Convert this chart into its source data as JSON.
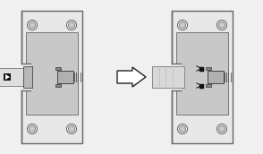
{
  "bg_color": "#f0f0f0",
  "plate_fill": "#e8e8e8",
  "plate_edge": "#666666",
  "recess_fill": "#c8c8c8",
  "recess_edge": "#777777",
  "cable_fill": "#dedede",
  "cable_edge": "#888888",
  "connector_fill": "#c0c0c0",
  "connector_edge": "#444444",
  "pin_color": "#555555",
  "screw_outer_fill": "#ffffff",
  "screw_inner_fill": "#cccccc",
  "screw_edge": "#555555",
  "black": "#111111",
  "white": "#ffffff",
  "arrow_fill": "#ffffff",
  "arrow_edge": "#222222",
  "latch_fill": "#888888",
  "latch_edge": "#333333"
}
